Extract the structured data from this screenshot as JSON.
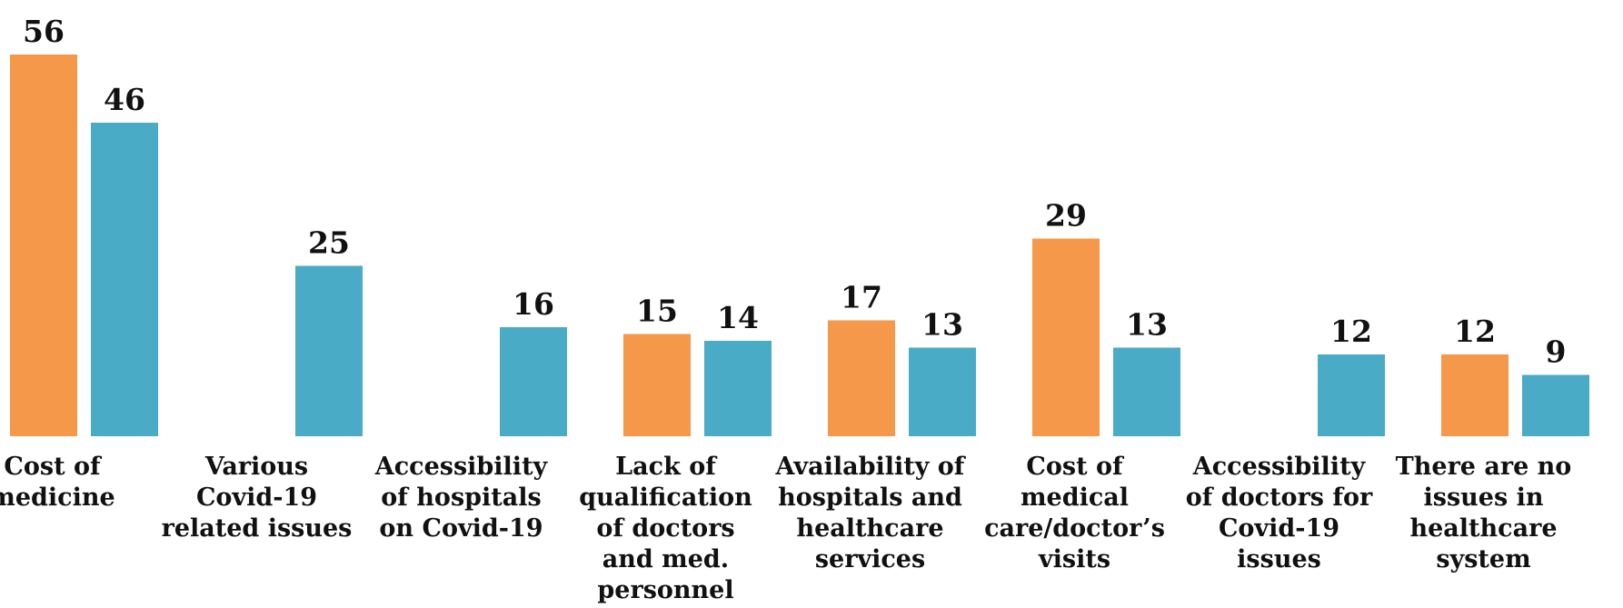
{
  "chart_data": {
    "type": "bar",
    "categories": [
      "Cost of\nmedicine",
      "Various\nCovid-19\nrelated issues",
      "Accessibility\nof hospitals\non Covid-19",
      "Lack of\nqualification\nof doctors\nand med.\npersonnel",
      "Availability of\nhospitals and\nhealthcare\nservices",
      "Cost of\nmedical\ncare/doctor’s\nvisits",
      "Accessibility\nof doctors for\nCovid-19\nissues",
      "There are no\nissues in\nhealthcare\nsystem"
    ],
    "series": [
      {
        "color": "#f5984a",
        "values": [
          56,
          null,
          null,
          15,
          17,
          29,
          null,
          12
        ]
      },
      {
        "color": "#4aabc6",
        "values": [
          46,
          25,
          16,
          14,
          13,
          13,
          12,
          9
        ]
      }
    ]
  }
}
